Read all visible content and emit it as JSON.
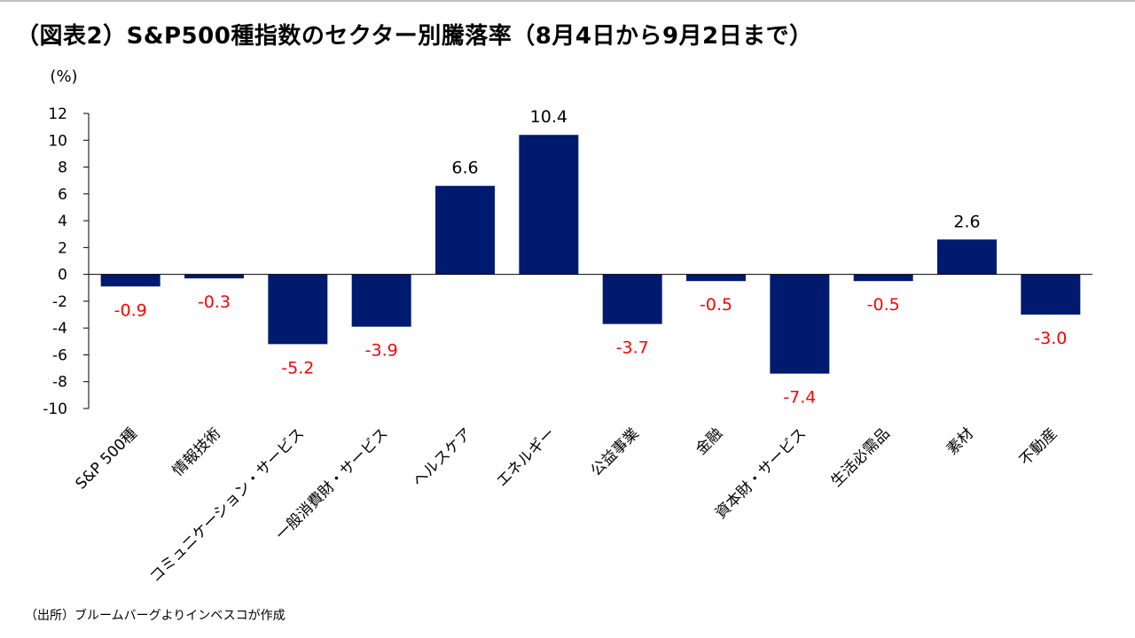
{
  "title": "（図表2）S&P500種指数のセクター別騰落率（8月4日から9月2日まで）",
  "source": "（出所）ブルームバーグよりインベスコが作成",
  "colors": {
    "bar": "#001a70",
    "negative_label": "#ff0000",
    "positive_label": "#000000",
    "axis": "#000000"
  },
  "chart_data": {
    "type": "bar",
    "ylabel": "(%)",
    "ylim": [
      -10,
      12
    ],
    "yticks": [
      12,
      10,
      8,
      6,
      4,
      2,
      0,
      -2,
      -4,
      -6,
      -8,
      -10
    ],
    "grid": false,
    "categories": [
      "S&P 500種",
      "情報技術",
      "コミュニケーション・サービス",
      "一般消費財・サービス",
      "ヘルスケア",
      "エネルギー",
      "公益事業",
      "金融",
      "資本財・サービス",
      "生活必需品",
      "素材",
      "不動産"
    ],
    "values": [
      -0.9,
      -0.3,
      -5.2,
      -3.9,
      6.6,
      10.4,
      -3.7,
      -0.5,
      -7.4,
      -0.5,
      2.6,
      -3.0
    ],
    "data_labels": [
      "-0.9",
      "-0.3",
      "-5.2",
      "-3.9",
      "6.6",
      "10.4",
      "-3.7",
      "-0.5",
      "-7.4",
      "-0.5",
      "2.6",
      "-3.0"
    ]
  }
}
